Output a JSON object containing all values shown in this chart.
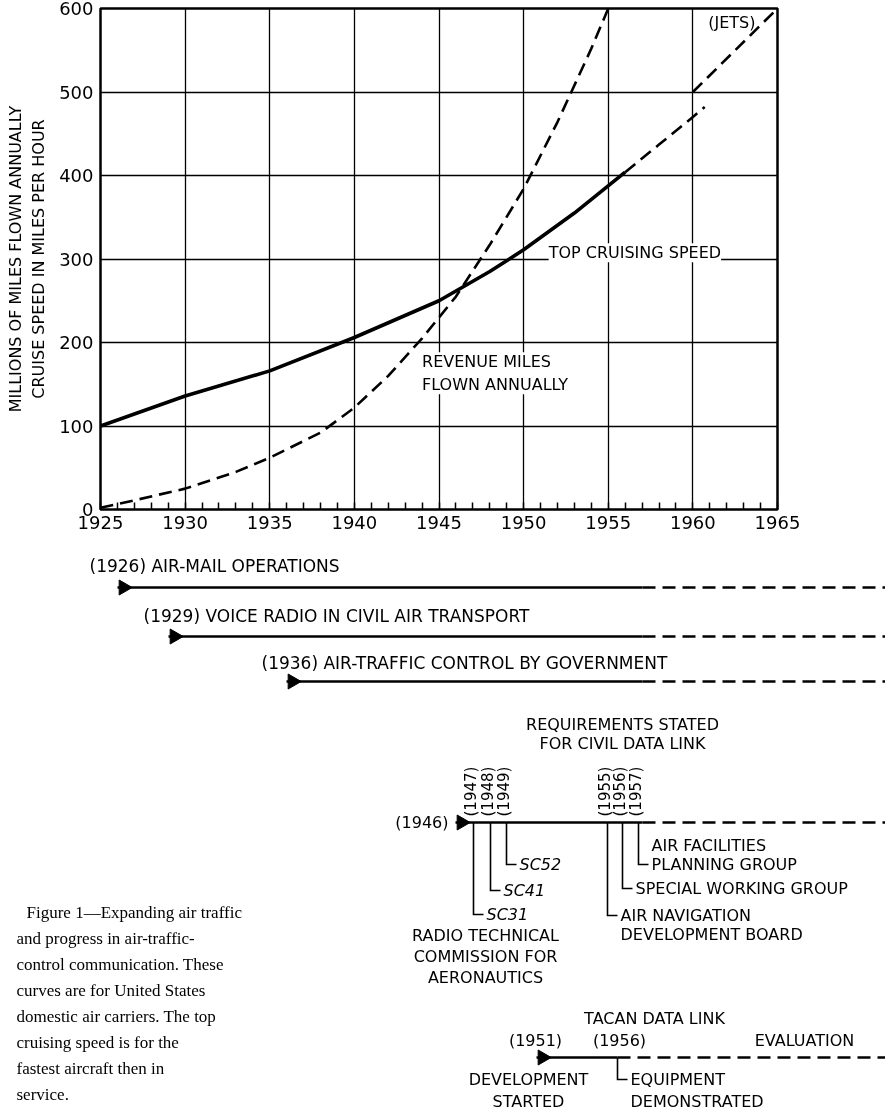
{
  "chart_data": {
    "type": "line",
    "ylabel": "MILLIONS OF MILES FLOWN ANNUALLY\nCRUISE SPEED IN MILES PER HOUR",
    "xlim": [
      1925,
      1965
    ],
    "ylim": [
      0,
      600
    ],
    "xticks": [
      1925,
      {
        "value": 1926,
        "label": null
      },
      {
        "value": 1927,
        "label": null
      },
      {
        "value": 1928,
        "label": null
      },
      {
        "value": 1929,
        "label": null
      },
      1930,
      {
        "value": 1931,
        "label": null
      },
      {
        "value": 1932,
        "label": null
      },
      {
        "value": 1933,
        "label": null
      },
      {
        "value": 1934,
        "label": null
      },
      1935,
      {
        "value": 1936,
        "label": null
      },
      {
        "value": 1937,
        "label": null
      },
      {
        "value": 1938,
        "label": null
      },
      {
        "value": 1939,
        "label": null
      },
      1940,
      {
        "value": 1941,
        "label": null
      },
      {
        "value": 1942,
        "label": null
      },
      {
        "value": 1943,
        "label": null
      },
      {
        "value": 1944,
        "label": null
      },
      1945,
      {
        "value": 1946,
        "label": null
      },
      {
        "value": 1947,
        "label": null
      },
      {
        "value": 1948,
        "label": null
      },
      {
        "value": 1949,
        "label": null
      },
      1950,
      {
        "value": 1951,
        "label": null
      },
      {
        "value": 1952,
        "label": null
      },
      {
        "value": 1953,
        "label": null
      },
      {
        "value": 1954,
        "label": null
      },
      1955,
      {
        "value": 1956,
        "label": null
      },
      {
        "value": 1957,
        "label": null
      },
      {
        "value": 1958,
        "label": null
      },
      {
        "value": 1959,
        "label": null
      },
      1960,
      {
        "value": 1961,
        "label": null
      },
      {
        "value": 1962,
        "label": null
      },
      {
        "value": 1963,
        "label": null
      },
      {
        "value": 1964,
        "label": null
      },
      1965
    ],
    "yticks": [
      0,
      100,
      200,
      300,
      400,
      500,
      600
    ],
    "grid": true,
    "series": [
      {
        "name": "REVENUE MILES\nFLOWN ANNUALLY",
        "color": "#000000",
        "line_style": "dashed",
        "x": [
          1925,
          1927,
          1930,
          1933,
          1935,
          1938,
          1940,
          1942,
          1944,
          1946,
          1948,
          1950,
          1952,
          1954,
          1955
        ],
        "values": [
          2,
          11,
          25,
          45,
          62,
          92,
          122,
          160,
          205,
          255,
          317,
          384,
          464,
          552,
          600
        ]
      },
      {
        "name": "TOP CRUISING SPEED",
        "color": "#000000",
        "line_style": "solid",
        "x": [
          1925,
          1930,
          1935,
          1940,
          1945,
          1948,
          1950,
          1953,
          1956
        ],
        "values": [
          100,
          136,
          166,
          206,
          250,
          285,
          311,
          355,
          404
        ]
      },
      {
        "color": "#000000",
        "line_style": "dashed",
        "x": [
          1956,
          1958,
          1960,
          1960.7
        ],
        "values": [
          404,
          437,
          470,
          482
        ]
      },
      {
        "name": "(JETS)",
        "color": "#000000",
        "line_style": "dashed",
        "x": [
          1960,
          1965
        ],
        "values": [
          500,
          600
        ]
      }
    ],
    "annotations": [
      "(1926) AIR-MAIL OPERATIONS",
      "(1929) VOICE RADIO IN CIVIL AIR TRANSPORT",
      "(1936) AIR-TRAFFIC CONTROL BY GOVERNMENT",
      "REQUIREMENTS STATED\nFOR CIVIL DATA LINK",
      "(1946)",
      "(1947)",
      "(1948)",
      "(1949)",
      "(1955)",
      "(1956)",
      "(1957)",
      "SC31",
      "SC41",
      "SC52",
      "RADIO TECHNICAL\nCOMMISSION FOR\nAERONAUTICS",
      "AIR NAVIGATION\nDEVELOPMENT BOARD",
      "SPECIAL WORKING GROUP",
      "AIR FACILITIES\nPLANNING GROUP",
      "TACAN DATA LINK",
      "(1951)",
      "(1956)",
      "EVALUATION",
      "DEVELOPMENT\nSTARTED",
      "EQUIPMENT\nDEMONSTRATED",
      "Figure 1—Expanding air traffic and progress in air-traffic-control communication. These curves are for United States domestic air carriers. The top cruising speed is for the fastest aircraft then in service."
    ]
  }
}
